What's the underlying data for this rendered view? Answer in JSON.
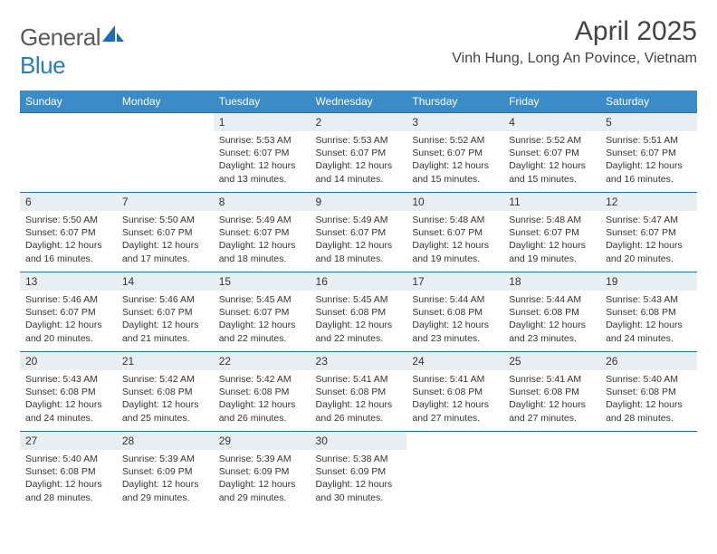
{
  "logo": {
    "part1": "General",
    "part2": "Blue"
  },
  "title": "April 2025",
  "location": "Vinh Hung, Long An Povince, Vietnam",
  "colors": {
    "header_bg": "#3b8bc8",
    "header_text": "#ffffff",
    "daynum_bg": "#e9eef2",
    "row_border": "#2b6ca3",
    "logo_blue": "#2b7bbf",
    "body_text": "#333333"
  },
  "weekdays": [
    "Sunday",
    "Monday",
    "Tuesday",
    "Wednesday",
    "Thursday",
    "Friday",
    "Saturday"
  ],
  "first_weekday_index": 2,
  "days": [
    {
      "n": 1,
      "sunrise": "5:53 AM",
      "sunset": "6:07 PM",
      "daylight": "12 hours and 13 minutes."
    },
    {
      "n": 2,
      "sunrise": "5:53 AM",
      "sunset": "6:07 PM",
      "daylight": "12 hours and 14 minutes."
    },
    {
      "n": 3,
      "sunrise": "5:52 AM",
      "sunset": "6:07 PM",
      "daylight": "12 hours and 15 minutes."
    },
    {
      "n": 4,
      "sunrise": "5:52 AM",
      "sunset": "6:07 PM",
      "daylight": "12 hours and 15 minutes."
    },
    {
      "n": 5,
      "sunrise": "5:51 AM",
      "sunset": "6:07 PM",
      "daylight": "12 hours and 16 minutes."
    },
    {
      "n": 6,
      "sunrise": "5:50 AM",
      "sunset": "6:07 PM",
      "daylight": "12 hours and 16 minutes."
    },
    {
      "n": 7,
      "sunrise": "5:50 AM",
      "sunset": "6:07 PM",
      "daylight": "12 hours and 17 minutes."
    },
    {
      "n": 8,
      "sunrise": "5:49 AM",
      "sunset": "6:07 PM",
      "daylight": "12 hours and 18 minutes."
    },
    {
      "n": 9,
      "sunrise": "5:49 AM",
      "sunset": "6:07 PM",
      "daylight": "12 hours and 18 minutes."
    },
    {
      "n": 10,
      "sunrise": "5:48 AM",
      "sunset": "6:07 PM",
      "daylight": "12 hours and 19 minutes."
    },
    {
      "n": 11,
      "sunrise": "5:48 AM",
      "sunset": "6:07 PM",
      "daylight": "12 hours and 19 minutes."
    },
    {
      "n": 12,
      "sunrise": "5:47 AM",
      "sunset": "6:07 PM",
      "daylight": "12 hours and 20 minutes."
    },
    {
      "n": 13,
      "sunrise": "5:46 AM",
      "sunset": "6:07 PM",
      "daylight": "12 hours and 20 minutes."
    },
    {
      "n": 14,
      "sunrise": "5:46 AM",
      "sunset": "6:07 PM",
      "daylight": "12 hours and 21 minutes."
    },
    {
      "n": 15,
      "sunrise": "5:45 AM",
      "sunset": "6:07 PM",
      "daylight": "12 hours and 22 minutes."
    },
    {
      "n": 16,
      "sunrise": "5:45 AM",
      "sunset": "6:08 PM",
      "daylight": "12 hours and 22 minutes."
    },
    {
      "n": 17,
      "sunrise": "5:44 AM",
      "sunset": "6:08 PM",
      "daylight": "12 hours and 23 minutes."
    },
    {
      "n": 18,
      "sunrise": "5:44 AM",
      "sunset": "6:08 PM",
      "daylight": "12 hours and 23 minutes."
    },
    {
      "n": 19,
      "sunrise": "5:43 AM",
      "sunset": "6:08 PM",
      "daylight": "12 hours and 24 minutes."
    },
    {
      "n": 20,
      "sunrise": "5:43 AM",
      "sunset": "6:08 PM",
      "daylight": "12 hours and 24 minutes."
    },
    {
      "n": 21,
      "sunrise": "5:42 AM",
      "sunset": "6:08 PM",
      "daylight": "12 hours and 25 minutes."
    },
    {
      "n": 22,
      "sunrise": "5:42 AM",
      "sunset": "6:08 PM",
      "daylight": "12 hours and 26 minutes."
    },
    {
      "n": 23,
      "sunrise": "5:41 AM",
      "sunset": "6:08 PM",
      "daylight": "12 hours and 26 minutes."
    },
    {
      "n": 24,
      "sunrise": "5:41 AM",
      "sunset": "6:08 PM",
      "daylight": "12 hours and 27 minutes."
    },
    {
      "n": 25,
      "sunrise": "5:41 AM",
      "sunset": "6:08 PM",
      "daylight": "12 hours and 27 minutes."
    },
    {
      "n": 26,
      "sunrise": "5:40 AM",
      "sunset": "6:08 PM",
      "daylight": "12 hours and 28 minutes."
    },
    {
      "n": 27,
      "sunrise": "5:40 AM",
      "sunset": "6:08 PM",
      "daylight": "12 hours and 28 minutes."
    },
    {
      "n": 28,
      "sunrise": "5:39 AM",
      "sunset": "6:09 PM",
      "daylight": "12 hours and 29 minutes."
    },
    {
      "n": 29,
      "sunrise": "5:39 AM",
      "sunset": "6:09 PM",
      "daylight": "12 hours and 29 minutes."
    },
    {
      "n": 30,
      "sunrise": "5:38 AM",
      "sunset": "6:09 PM",
      "daylight": "12 hours and 30 minutes."
    }
  ],
  "labels": {
    "sunrise": "Sunrise:",
    "sunset": "Sunset:",
    "daylight": "Daylight:"
  }
}
